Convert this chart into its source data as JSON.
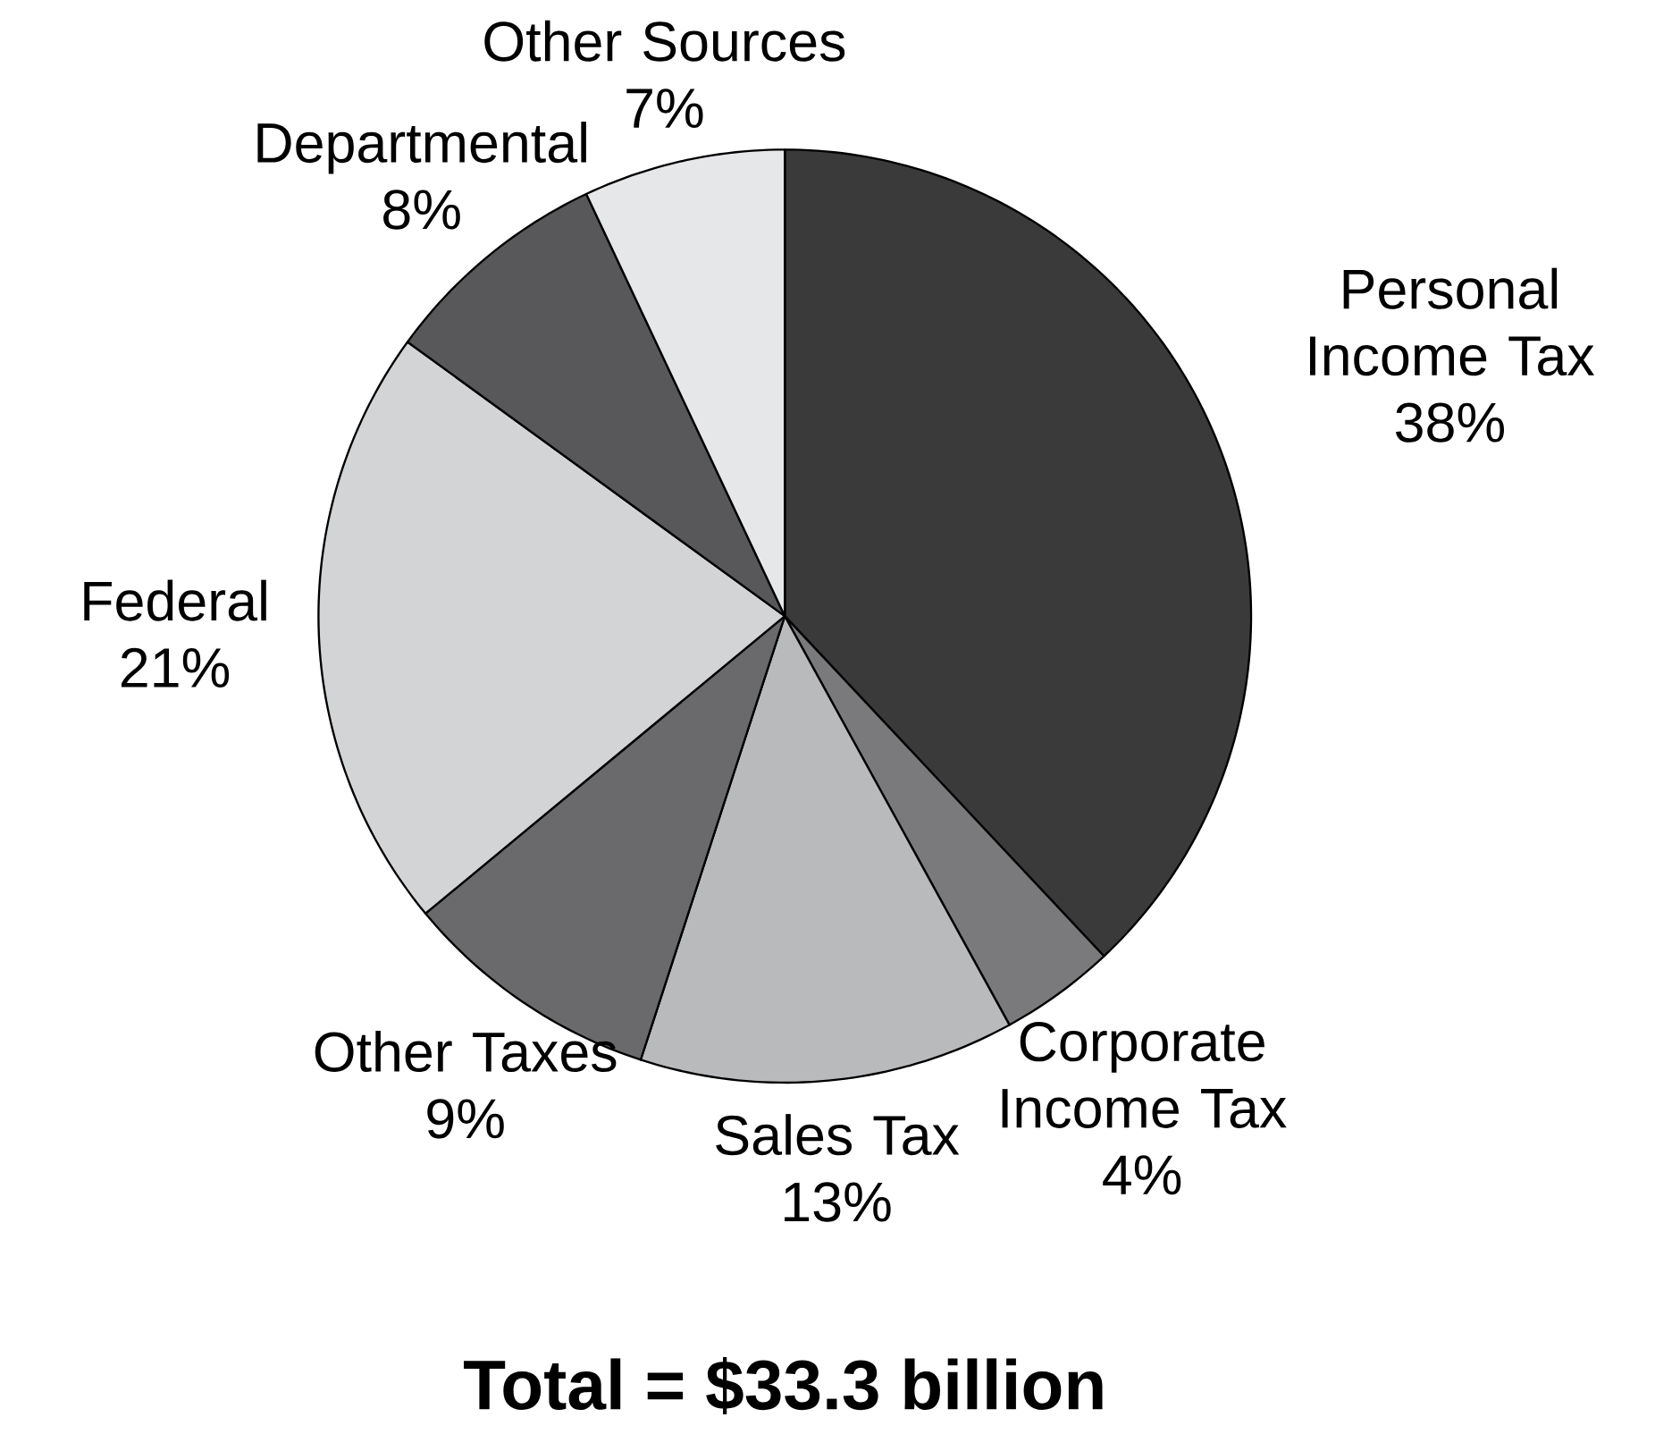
{
  "chart_data": {
    "type": "pie",
    "title": "Total = $33.3 billion",
    "categories": [
      "Personal Income Tax",
      "Corporate Income Tax",
      "Sales Tax",
      "Other Taxes",
      "Federal",
      "Departmental",
      "Other Sources"
    ],
    "values": [
      38,
      4,
      13,
      9,
      21,
      8,
      7
    ],
    "value_labels": [
      "38%",
      "4%",
      "13%",
      "9%",
      "21%",
      "8%",
      "7%"
    ],
    "colors": [
      "#3a3a3a",
      "#7a7a7c",
      "#b9babc",
      "#6a6a6c",
      "#d3d4d6",
      "#58585a",
      "#e6e7e9"
    ]
  }
}
